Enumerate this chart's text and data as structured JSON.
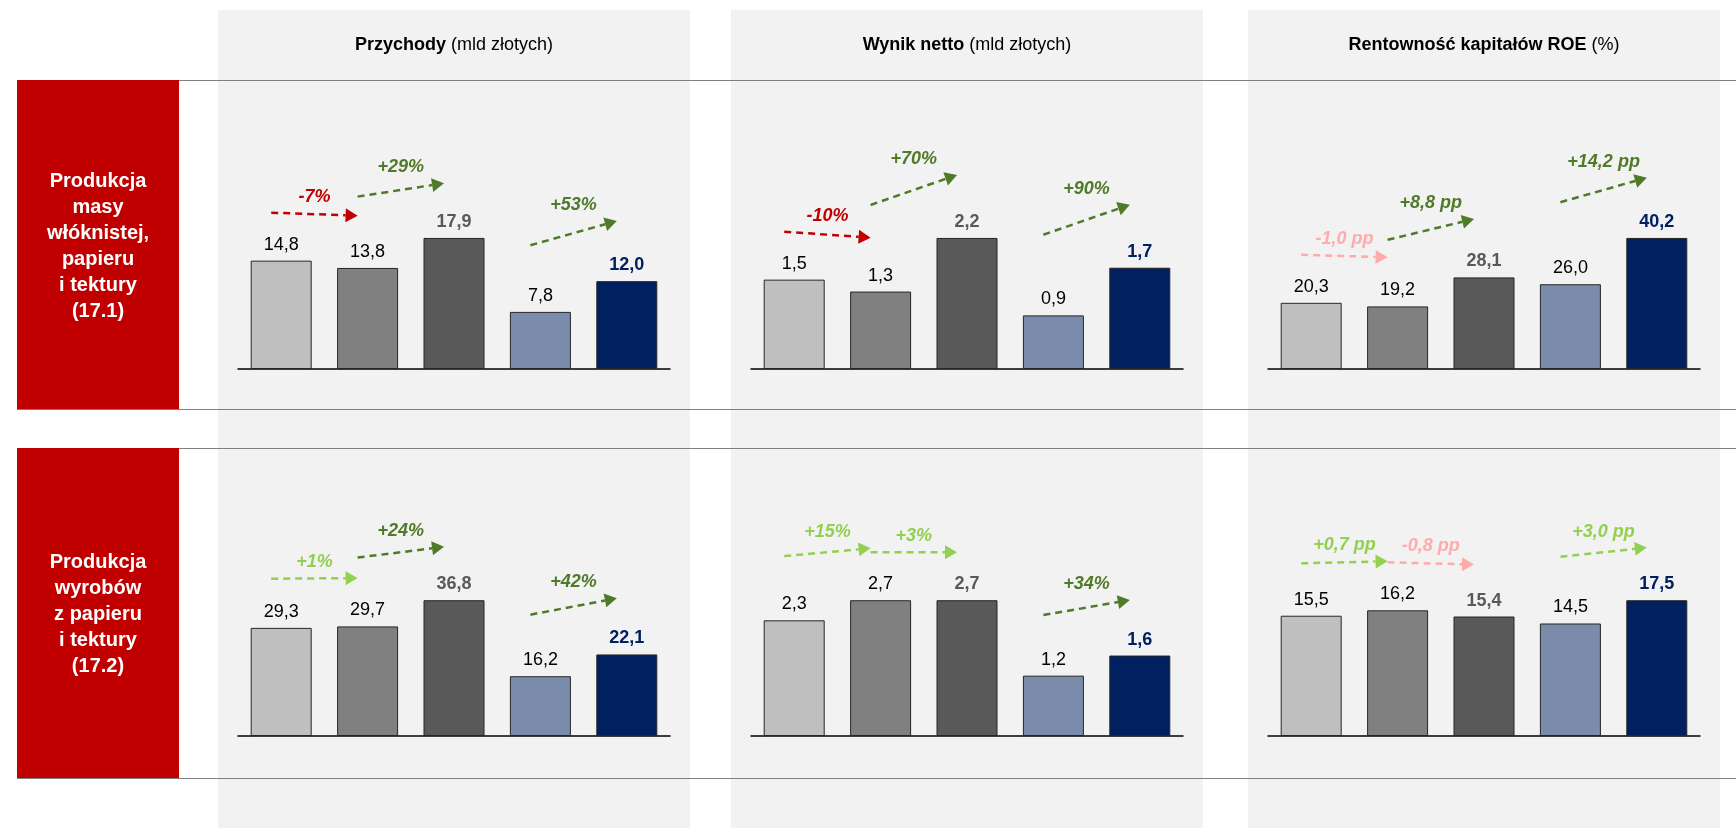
{
  "chart_data": [
    {
      "type": "bar",
      "title": "Przychody",
      "subtitle": "(mld złotych)",
      "ylabel": "Produkcja\nmasy\nwłóknistej,\npapieru\ni tektury\n(17.1)",
      "categories": [
        null,
        null,
        null,
        null,
        null
      ],
      "values": [
        14.8,
        13.8,
        17.9,
        7.8,
        12.0
      ],
      "value_labels": [
        "14,8",
        "13,8",
        "17,9",
        "7,8",
        "12,0"
      ],
      "colors": [
        "#bfbfbf",
        "#808080",
        "#595959",
        "#7a8bab",
        "#002060"
      ],
      "annotations": [
        "-7%",
        "+29%",
        "+53%"
      ]
    },
    {
      "type": "bar",
      "title": "Wynik netto",
      "subtitle": "(mld złotych)",
      "categories": [
        null,
        null,
        null,
        null,
        null
      ],
      "values": [
        1.5,
        1.3,
        2.2,
        0.9,
        1.7
      ],
      "value_labels": [
        "1,5",
        "1,3",
        "2,2",
        "0,9",
        "1,7"
      ],
      "colors": [
        "#bfbfbf",
        "#808080",
        "#595959",
        "#7a8bab",
        "#002060"
      ],
      "annotations": [
        "-10%",
        "+70%",
        "+90%"
      ]
    },
    {
      "type": "bar",
      "title": "Rentowność kapitałów ROE",
      "subtitle": "(%)",
      "categories": [
        null,
        null,
        null,
        null,
        null
      ],
      "values": [
        20.3,
        19.2,
        28.1,
        26.0,
        40.2
      ],
      "value_labels": [
        "20,3",
        "19,2",
        "28,1",
        "26,0",
        "40,2"
      ],
      "colors": [
        "#bfbfbf",
        "#808080",
        "#595959",
        "#7a8bab",
        "#002060"
      ],
      "annotations": [
        "-1,0 pp",
        "+8,8 pp",
        "+14,2 pp"
      ]
    },
    {
      "type": "bar",
      "ylabel": "Produkcja\nwyrobów\nz papieru\ni tektury\n(17.2)",
      "categories": [
        null,
        null,
        null,
        null,
        null
      ],
      "values": [
        29.3,
        29.7,
        36.8,
        16.2,
        22.1
      ],
      "value_labels": [
        "29,3",
        "29,7",
        "36,8",
        "16,2",
        "22,1"
      ],
      "colors": [
        "#bfbfbf",
        "#808080",
        "#595959",
        "#7a8bab",
        "#002060"
      ],
      "annotations": [
        "+1%",
        "+24%",
        "+42%"
      ]
    },
    {
      "type": "bar",
      "categories": [
        null,
        null,
        null,
        null,
        null
      ],
      "values": [
        2.3,
        2.7,
        2.7,
        1.2,
        1.6
      ],
      "value_labels": [
        "2,3",
        "2,7",
        "2,7",
        "1,2",
        "1,6"
      ],
      "colors": [
        "#bfbfbf",
        "#808080",
        "#595959",
        "#7a8bab",
        "#002060"
      ],
      "annotations": [
        "+15%",
        "+3%",
        "+34%"
      ]
    },
    {
      "type": "bar",
      "categories": [
        null,
        null,
        null,
        null,
        null
      ],
      "values": [
        15.5,
        16.2,
        15.4,
        14.5,
        17.5
      ],
      "value_labels": [
        "15,5",
        "16,2",
        "15,4",
        "14,5",
        "17,5"
      ],
      "colors": [
        "#bfbfbf",
        "#808080",
        "#595959",
        "#7a8bab",
        "#002060"
      ],
      "annotations": [
        "+0,7 pp",
        "-0,8 pp",
        "+3,0 pp"
      ]
    }
  ]
}
